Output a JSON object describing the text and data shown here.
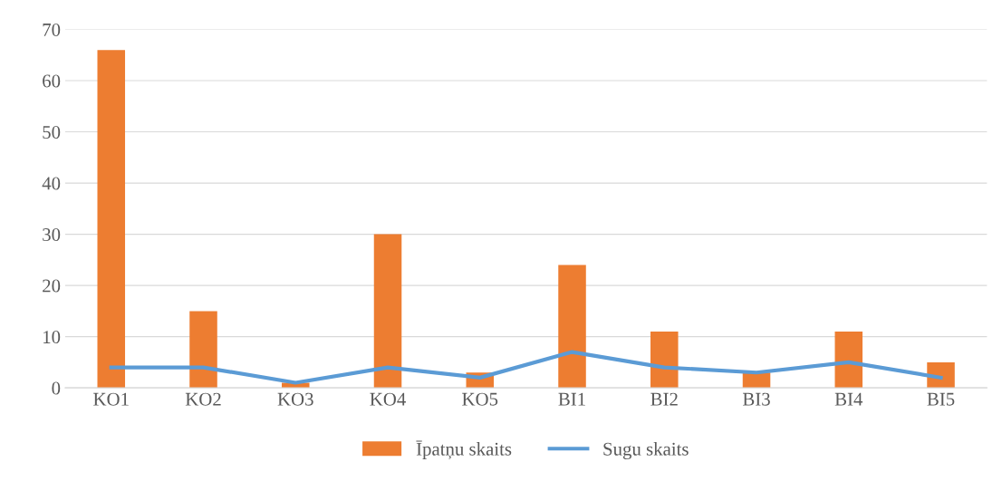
{
  "chart_data": {
    "type": "bar",
    "categories": [
      "KO1",
      "KO2",
      "KO3",
      "KO4",
      "KO5",
      "BI1",
      "BI2",
      "BI3",
      "BI4",
      "BI5"
    ],
    "series": [
      {
        "name": "Īpatņu skaits",
        "color": "#ed7d31",
        "values": [
          66,
          15,
          1,
          30,
          3,
          24,
          11,
          3,
          11,
          5
        ]
      },
      {
        "name": "Sugu skaits",
        "color": "#5b9bd5",
        "type": "line",
        "values": [
          4,
          4,
          1,
          4,
          2,
          7,
          4,
          3,
          5,
          2
        ]
      }
    ],
    "ylim": [
      0,
      70
    ],
    "yticks": [
      0,
      10,
      20,
      30,
      40,
      50,
      60,
      70
    ],
    "grid": "y",
    "legend": "bottom"
  }
}
